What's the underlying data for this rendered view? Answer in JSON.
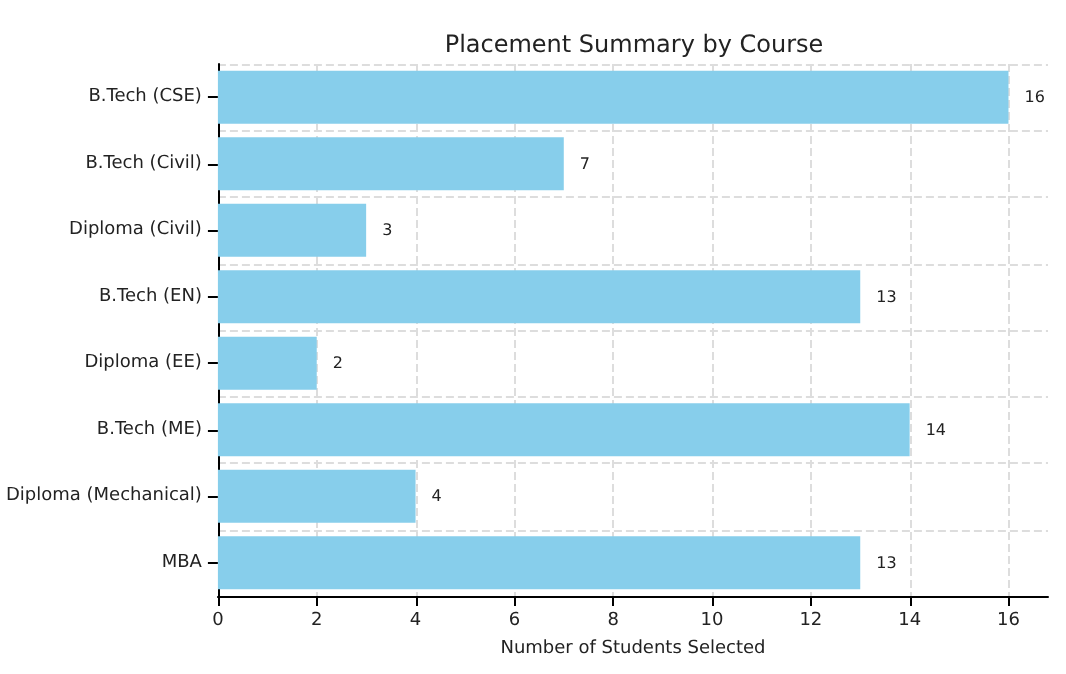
{
  "chart_data": {
    "type": "bar",
    "orientation": "horizontal",
    "title": "Placement Summary by Course",
    "xlabel": "Number of Students Selected",
    "categories": [
      "B.Tech (CSE)",
      "B.Tech (Civil)",
      "Diploma (Civil)",
      "B.Tech (EN)",
      "Diploma (EE)",
      "B.Tech (ME)",
      "Diploma (Mechanical)",
      "MBA"
    ],
    "values": [
      16,
      7,
      3,
      13,
      2,
      14,
      4,
      13
    ],
    "color": "#87ceeb",
    "xlim": [
      0,
      16.8
    ],
    "xticks": [
      0,
      2,
      4,
      6,
      8,
      10,
      12,
      14,
      16
    ],
    "grid": true,
    "data_labels": true
  }
}
